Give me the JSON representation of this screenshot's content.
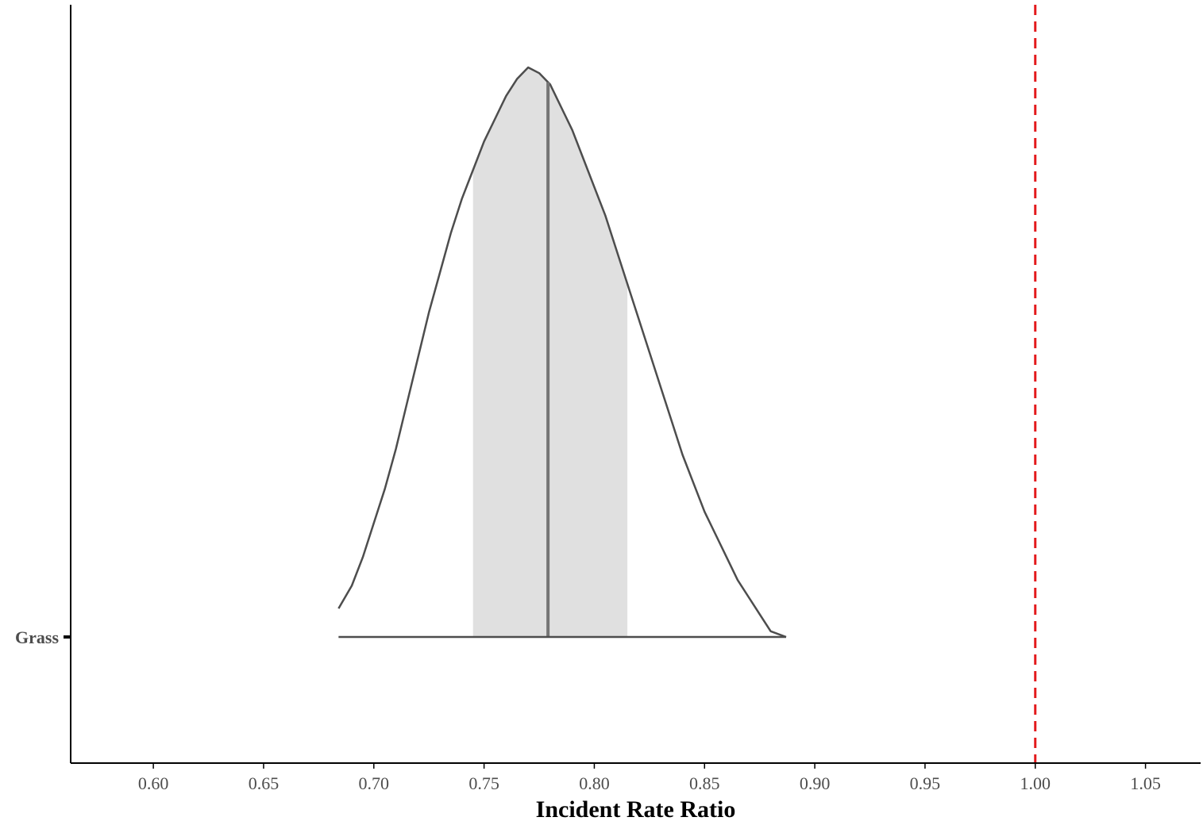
{
  "chart_data": {
    "type": "density",
    "xlabel": "Incident Rate Ratio",
    "xlim": [
      0.5625,
      1.075
    ],
    "xticks": [
      "0.60",
      "0.65",
      "0.70",
      "0.75",
      "0.80",
      "0.85",
      "0.90",
      "0.95",
      "1.00",
      "1.05"
    ],
    "categories": [
      "Grass"
    ],
    "series": [
      {
        "category": "Grass",
        "density_x": [
          0.684,
          0.69,
          0.695,
          0.7,
          0.705,
          0.71,
          0.715,
          0.72,
          0.725,
          0.73,
          0.735,
          0.74,
          0.745,
          0.75,
          0.755,
          0.76,
          0.765,
          0.77,
          0.775,
          0.78,
          0.785,
          0.79,
          0.795,
          0.8,
          0.805,
          0.81,
          0.815,
          0.82,
          0.825,
          0.83,
          0.835,
          0.84,
          0.845,
          0.85,
          0.855,
          0.86,
          0.865,
          0.87,
          0.875,
          0.88,
          0.887
        ],
        "density_rel": [
          0.05,
          0.09,
          0.14,
          0.2,
          0.26,
          0.33,
          0.41,
          0.49,
          0.57,
          0.64,
          0.71,
          0.77,
          0.82,
          0.87,
          0.91,
          0.95,
          0.98,
          1.0,
          0.99,
          0.97,
          0.93,
          0.89,
          0.84,
          0.79,
          0.74,
          0.68,
          0.62,
          0.56,
          0.5,
          0.44,
          0.38,
          0.32,
          0.27,
          0.22,
          0.18,
          0.14,
          0.1,
          0.07,
          0.04,
          0.01,
          0.0
        ],
        "median": 0.779,
        "interval_inner": [
          0.745,
          0.815
        ],
        "interval_outer": [
          0.684,
          0.887
        ]
      }
    ],
    "reference_line": {
      "x": 1.0,
      "style": "dashed"
    },
    "colors": {
      "outline": "#4d4d4d",
      "fill_inner": "#e0e0e0",
      "median_line": "#757575",
      "reference_line": "#e31a1c",
      "axis": "#000000"
    },
    "grid": false
  }
}
